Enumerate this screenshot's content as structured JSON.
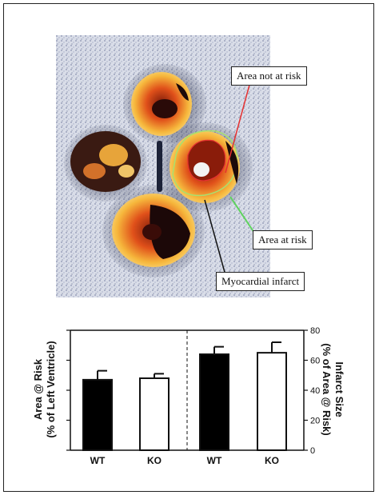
{
  "figure": {
    "annotations": {
      "not_at_risk": "Area not at risk",
      "at_risk": "Area at risk",
      "infarct": "Myocardial infarct"
    },
    "colors": {
      "not_at_risk_arrow": "#e53030",
      "at_risk_arrow": "#5fd35f",
      "infarct_arrow": "#111111"
    }
  },
  "chart_data": [
    {
      "type": "bar",
      "categories": [
        "WT",
        "KO"
      ],
      "values": [
        47,
        48
      ],
      "errors": [
        6,
        3
      ],
      "colors": [
        "#000000",
        "#ffffff"
      ],
      "ylabel_line1": "Area @ Risk",
      "ylabel_line2": "(% of Left Ventricle)",
      "ylim": [
        0,
        80
      ],
      "yticks": [
        0,
        20,
        40,
        60,
        80
      ],
      "axis_side": "left"
    },
    {
      "type": "bar",
      "categories": [
        "WT",
        "KO"
      ],
      "values": [
        64,
        65
      ],
      "errors": [
        5,
        7
      ],
      "colors": [
        "#000000",
        "#ffffff"
      ],
      "ylabel_line1": "Infarct Size",
      "ylabel_line2": "(% of Area @ Risk)",
      "ylim": [
        0,
        80
      ],
      "yticks": [
        0,
        20,
        40,
        60,
        80
      ],
      "axis_side": "right"
    }
  ]
}
